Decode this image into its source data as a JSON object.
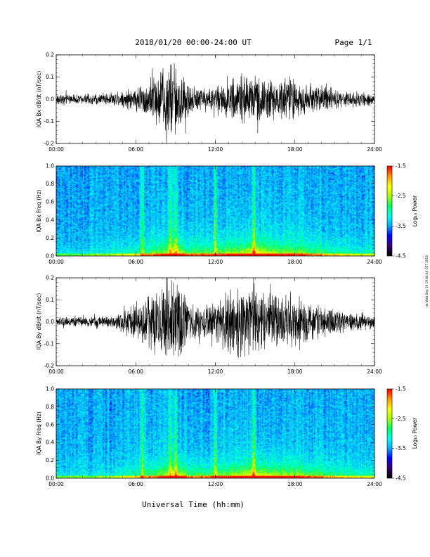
{
  "header": {
    "date_range": "2018/01/20  00:00-24:00 UT",
    "page": "Page 1/1"
  },
  "footer": {
    "xlabel": "Universal Time (hh:mm)"
  },
  "side_stamp": "rot Wed Sep 19 19:04:45 CST 2018",
  "colors": {
    "trace": "#000000",
    "spectrogram_background": "#1e3ad6",
    "colormap": [
      "#000000",
      "#3a0070",
      "#0000ff",
      "#00aaff",
      "#00ffee",
      "#00ff66",
      "#aaff00",
      "#ffff00",
      "#ff9900",
      "#ff0000"
    ]
  },
  "chart_data": [
    {
      "type": "line",
      "id": "bx-waveform",
      "ylabel": "IQA Bx dB/dt (nT/sec)",
      "ylim": [
        -0.2,
        0.2
      ],
      "yticks": [
        "-0.2",
        "-0.1",
        "0.0",
        "0.1",
        "0.2"
      ],
      "xlim": [
        0,
        24
      ],
      "xticks": [
        "00:00",
        "06:00",
        "12:00",
        "18:00",
        "24:00"
      ],
      "amplitude_envelope": {
        "hours": [
          0,
          2,
          4,
          5,
          6,
          7,
          8,
          8.5,
          9,
          9.5,
          10,
          11,
          12,
          13,
          14,
          15,
          16,
          17,
          18,
          19,
          20,
          21,
          22,
          23,
          24
        ],
        "amplitude": [
          0.025,
          0.025,
          0.03,
          0.045,
          0.06,
          0.1,
          0.16,
          0.19,
          0.2,
          0.15,
          0.08,
          0.06,
          0.06,
          0.1,
          0.12,
          0.12,
          0.1,
          0.11,
          0.1,
          0.08,
          0.07,
          0.05,
          0.04,
          0.035,
          0.03
        ]
      }
    },
    {
      "type": "heatmap",
      "id": "bx-spectrogram",
      "ylabel": "IQA Bx Freq (Hz)",
      "ylim": [
        0,
        1
      ],
      "yticks": [
        "0.0",
        "0.2",
        "0.4",
        "0.6",
        "0.8",
        "1.0"
      ],
      "xlim": [
        0,
        24
      ],
      "xticks": [
        "00:00",
        "06:00",
        "12:00",
        "18:00",
        "24:00"
      ],
      "colorbar": {
        "label": "Log₁₀ Power",
        "range": [
          -4.5,
          -1.5
        ],
        "ticks": [
          "-1.5",
          "-2.5",
          "-3.5",
          "-4.5"
        ]
      },
      "bright_bands_hours": [
        6.5,
        8.6,
        9.0,
        12.0,
        14.9
      ],
      "activity_hours": [
        0,
        2,
        4,
        6,
        8,
        9,
        10,
        12,
        14,
        15,
        16,
        18,
        20,
        22,
        24
      ],
      "activity_level": [
        0.15,
        0.15,
        0.2,
        0.35,
        0.6,
        0.85,
        0.5,
        0.55,
        0.7,
        0.9,
        0.7,
        0.6,
        0.45,
        0.3,
        0.25
      ]
    },
    {
      "type": "line",
      "id": "by-waveform",
      "ylabel": "IQA By dB/dt (nT/sec)",
      "ylim": [
        -0.2,
        0.2
      ],
      "yticks": [
        "-0.2",
        "-0.1",
        "0.0",
        "0.1",
        "0.2"
      ],
      "xlim": [
        0,
        24
      ],
      "xticks": [
        "00:00",
        "06:00",
        "12:00",
        "18:00",
        "24:00"
      ],
      "amplitude_envelope": {
        "hours": [
          0,
          2,
          4,
          5,
          6,
          7,
          8,
          8.5,
          9,
          9.5,
          10,
          11,
          12,
          13,
          14,
          15,
          16,
          17,
          18,
          19,
          20,
          21,
          22,
          23,
          24
        ],
        "amplitude": [
          0.025,
          0.025,
          0.03,
          0.05,
          0.1,
          0.14,
          0.18,
          0.2,
          0.2,
          0.18,
          0.1,
          0.08,
          0.1,
          0.17,
          0.18,
          0.17,
          0.14,
          0.13,
          0.12,
          0.1,
          0.08,
          0.07,
          0.05,
          0.045,
          0.04
        ]
      }
    },
    {
      "type": "heatmap",
      "id": "by-spectrogram",
      "ylabel": "IQA By Freq (Hz)",
      "ylim": [
        0,
        1
      ],
      "yticks": [
        "0.0",
        "0.2",
        "0.4",
        "0.6",
        "0.8",
        "1.0"
      ],
      "xlim": [
        0,
        24
      ],
      "xticks": [
        "00:00",
        "06:00",
        "12:00",
        "18:00",
        "24:00"
      ],
      "colorbar": {
        "label": "Log₁₀ Power",
        "range": [
          -4.5,
          -1.5
        ],
        "ticks": [
          "-1.5",
          "-2.5",
          "-3.5",
          "-4.5"
        ]
      },
      "bright_bands_hours": [
        6.5,
        8.6,
        9.0,
        12.0,
        14.9
      ],
      "activity_hours": [
        0,
        2,
        4,
        6,
        8,
        9,
        10,
        12,
        14,
        15,
        16,
        18,
        20,
        22,
        24
      ],
      "activity_level": [
        0.15,
        0.15,
        0.2,
        0.35,
        0.6,
        0.85,
        0.5,
        0.55,
        0.75,
        0.9,
        0.75,
        0.65,
        0.5,
        0.35,
        0.3
      ]
    }
  ]
}
